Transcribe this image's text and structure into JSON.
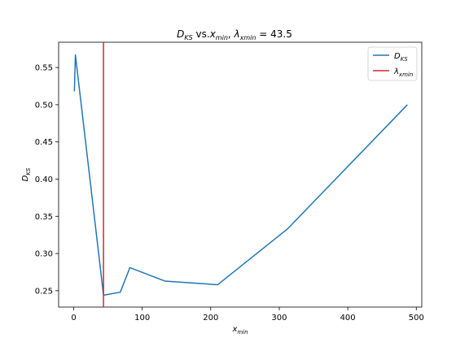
{
  "chart_data": {
    "type": "line",
    "title_parts": {
      "d": "D",
      "d_sub": "KS",
      "vs": " vs.",
      "x": "x",
      "x_sub": "min",
      "comma": ", ",
      "lambda": "λ",
      "lambda_sub": "xmin",
      "eq": " = 43.5"
    },
    "xlabel": {
      "main": "x",
      "sub": "min"
    },
    "ylabel": {
      "main": "D",
      "sub": "KS"
    },
    "xlim": [
      -22,
      508
    ],
    "ylim": [
      0.228,
      0.584
    ],
    "xticks": [
      0,
      100,
      200,
      300,
      400,
      500
    ],
    "yticks": [
      0.25,
      0.3,
      0.35,
      0.4,
      0.45,
      0.5,
      0.55
    ],
    "ytick_labels": [
      "0.25",
      "0.30",
      "0.35",
      "0.40",
      "0.45",
      "0.50",
      "0.55"
    ],
    "series": [
      {
        "name": {
          "main": "D",
          "sub": "KS"
        },
        "color": "#1f77b4",
        "x": [
          1,
          2.5,
          43.5,
          68,
          82,
          133,
          210,
          312,
          487
        ],
        "y": [
          0.518,
          0.567,
          0.244,
          0.248,
          0.281,
          0.263,
          0.258,
          0.333,
          0.5
        ]
      }
    ],
    "vline": {
      "name": {
        "main": "λ",
        "sub": "xmin"
      },
      "x": 43.5,
      "color": "#d62728"
    },
    "legend_position": "top-right",
    "grid": false
  }
}
